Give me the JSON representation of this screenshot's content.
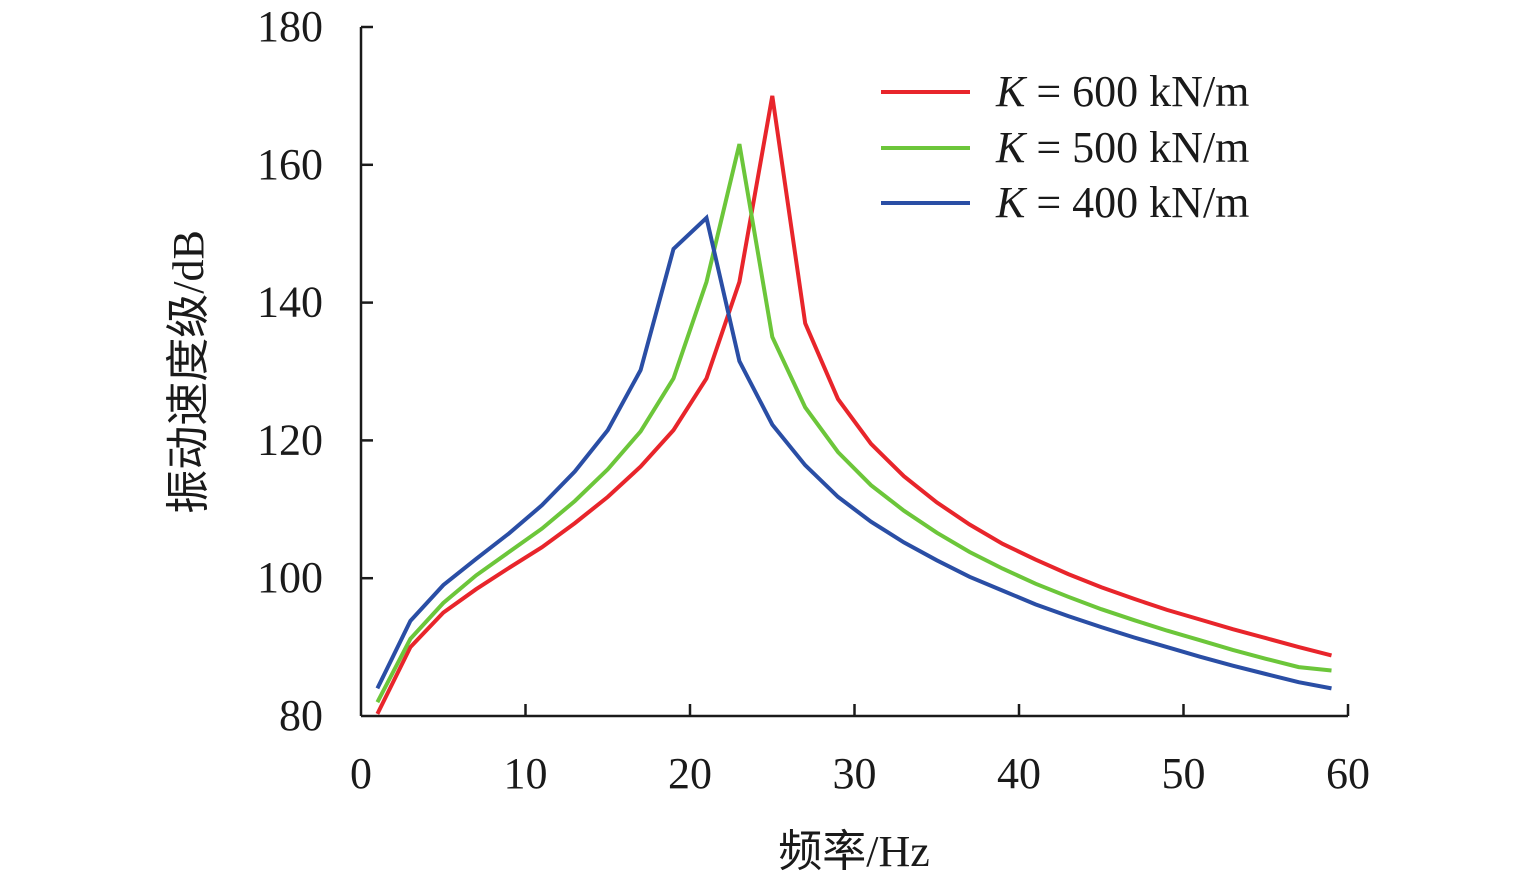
{
  "chart_data": {
    "type": "line",
    "xlabel": "频率/Hz",
    "ylabel": "振动速度级/dB",
    "xlim": [
      0,
      60
    ],
    "ylim": [
      80,
      180
    ],
    "xticks": [
      0,
      10,
      20,
      30,
      40,
      50,
      60
    ],
    "yticks": [
      80,
      100,
      120,
      140,
      160,
      180
    ],
    "grid": false,
    "legend_position": "top-right",
    "legend": [
      {
        "k": "K",
        "rest": " = 600 kN/m"
      },
      {
        "k": "K",
        "rest": " = 500 kN/m"
      },
      {
        "k": "K",
        "rest": " = 400 kN/m"
      }
    ],
    "series": [
      {
        "color": "#e8252b",
        "x": [
          1,
          3,
          5,
          7,
          9,
          11,
          13,
          15,
          17,
          19,
          21,
          23,
          25,
          27,
          29,
          31,
          33,
          35,
          37,
          39,
          41,
          43,
          45,
          47,
          49,
          51,
          53,
          55,
          57,
          59
        ],
        "y": [
          80.3,
          90,
          95,
          98.4,
          101.5,
          104.5,
          108,
          111.8,
          116.2,
          121.5,
          129,
          143,
          170,
          137,
          126,
          119.5,
          114.8,
          111,
          107.8,
          105,
          102.7,
          100.6,
          98.7,
          97,
          95.4,
          94,
          92.6,
          91.3,
          90,
          88.8
        ]
      },
      {
        "color": "#6cc63a",
        "x": [
          1,
          3,
          5,
          7,
          9,
          11,
          13,
          15,
          17,
          19,
          21,
          23,
          25,
          27,
          29,
          31,
          33,
          35,
          37,
          39,
          41,
          43,
          45,
          47,
          49,
          51,
          53,
          55,
          57,
          59
        ],
        "y": [
          82,
          91.2,
          96.4,
          100.4,
          103.8,
          107.2,
          111.2,
          115.8,
          121.3,
          129,
          143,
          163,
          135,
          124.8,
          118.3,
          113.5,
          109.8,
          106.6,
          103.8,
          101.4,
          99.2,
          97.3,
          95.5,
          93.9,
          92.4,
          91,
          89.6,
          88.3,
          87.1,
          86.6
        ]
      },
      {
        "color": "#2a4ea5",
        "x": [
          1,
          3,
          5,
          7,
          9,
          11,
          13,
          15,
          17,
          19,
          21,
          23,
          25,
          27,
          29,
          31,
          33,
          35,
          37,
          39,
          41,
          43,
          45,
          47,
          49,
          51,
          53,
          55,
          57,
          59
        ],
        "y": [
          84,
          93.8,
          99,
          102.8,
          106.5,
          110.6,
          115.5,
          121.5,
          130.2,
          147.8,
          152.3,
          131.5,
          122.3,
          116.4,
          111.8,
          108.2,
          105.2,
          102.6,
          100.2,
          98.2,
          96.2,
          94.5,
          92.9,
          91.4,
          90,
          88.6,
          87.3,
          86.1,
          84.9,
          84
        ]
      }
    ]
  }
}
